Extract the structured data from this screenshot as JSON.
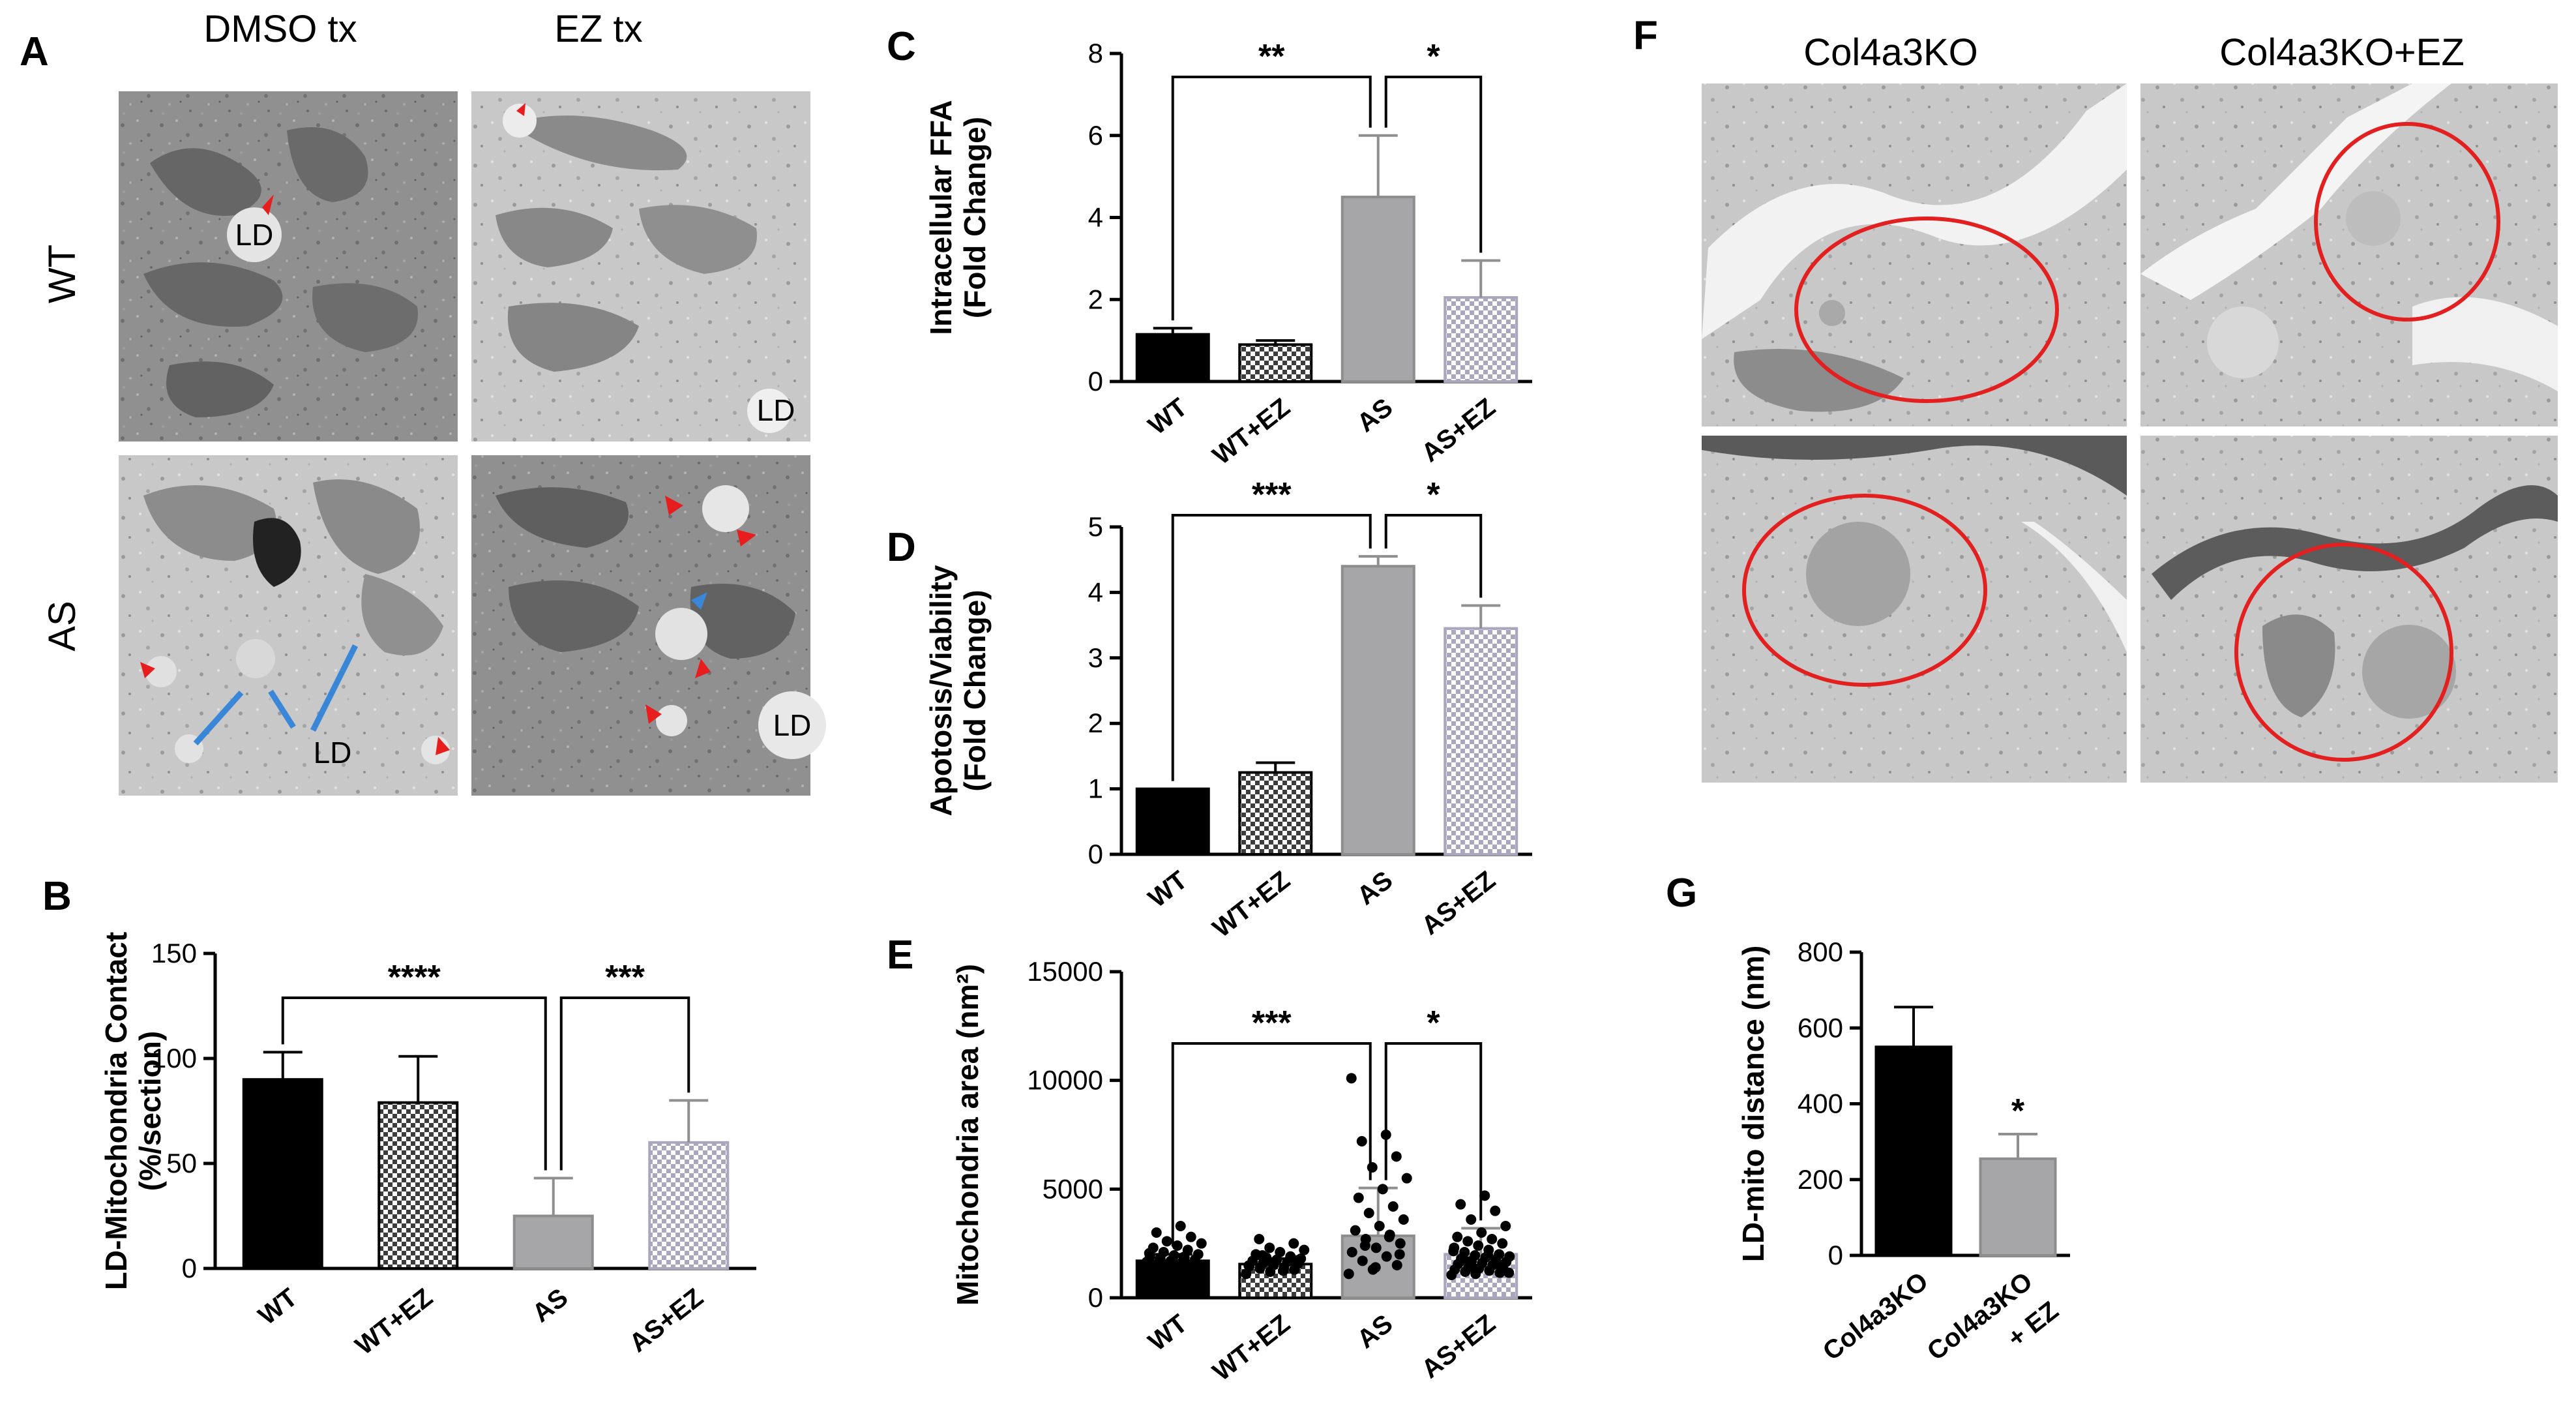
{
  "panels": {
    "A": {
      "label": "A",
      "col_headers": [
        "DMSO tx",
        "EZ tx"
      ],
      "row_headers": [
        "WT",
        "AS"
      ],
      "ld_label": "LD"
    },
    "F": {
      "label": "F",
      "col_headers": [
        "Col4a3KO",
        "Col4a3KO+EZ"
      ]
    }
  },
  "colors": {
    "bar_black": "#000000",
    "bar_gray": "#a6a6a8",
    "em_background": "#8d8d8d",
    "arrow_red": "#e81e1e",
    "arrow_blue": "#3a86d8",
    "circle_red": "#e32020"
  },
  "chart_data": [
    {
      "panel": "B",
      "type": "bar",
      "ylabel": "LD-Mitochondria Contact (%/section)",
      "ylabel_lines": [
        "LD-Mitochondria Contact",
        "(%/section)"
      ],
      "categories": [
        "WT",
        "WT+EZ",
        "AS",
        "AS+EZ"
      ],
      "values": [
        90,
        79,
        25,
        60
      ],
      "errors": [
        13,
        22,
        18,
        20
      ],
      "ylim": [
        0,
        150
      ],
      "yticks": [
        0,
        50,
        100,
        150
      ],
      "fills": [
        "black",
        "check",
        "gray",
        "light-check"
      ],
      "significance": [
        {
          "from": 0,
          "to": 2,
          "label": "****"
        },
        {
          "from": 2,
          "to": 3,
          "label": "***"
        }
      ]
    },
    {
      "panel": "C",
      "type": "bar",
      "ylabel": "Intracellular FFA (Fold Change)",
      "ylabel_lines": [
        "Intracellular FFA",
        "(Fold Change)"
      ],
      "categories": [
        "WT",
        "WT+EZ",
        "AS",
        "AS+EZ"
      ],
      "values": [
        1.15,
        0.9,
        4.5,
        2.05
      ],
      "errors": [
        0.15,
        0.1,
        1.5,
        0.9
      ],
      "ylim": [
        0,
        8
      ],
      "yticks": [
        0,
        2,
        4,
        6,
        8
      ],
      "fills": [
        "black",
        "check",
        "gray",
        "light-check"
      ],
      "significance": [
        {
          "from": 0,
          "to": 2,
          "label": "**"
        },
        {
          "from": 2,
          "to": 3,
          "label": "*"
        }
      ]
    },
    {
      "panel": "D",
      "type": "bar",
      "ylabel": "Apotosis/Viability (Fold Change)",
      "ylabel_lines": [
        "Apotosis/Viability",
        "(Fold Change)"
      ],
      "categories": [
        "WT",
        "WT+EZ",
        "AS",
        "AS+EZ"
      ],
      "values": [
        1.0,
        1.25,
        4.4,
        3.45
      ],
      "errors": [
        0.0,
        0.15,
        0.15,
        0.35
      ],
      "ylim": [
        0,
        5
      ],
      "yticks": [
        0,
        1,
        2,
        3,
        4,
        5
      ],
      "fills": [
        "black",
        "check",
        "gray",
        "light-check"
      ],
      "significance": [
        {
          "from": 0,
          "to": 2,
          "label": "***"
        },
        {
          "from": 2,
          "to": 3,
          "label": "*"
        }
      ]
    },
    {
      "panel": "E",
      "type": "bar",
      "ylabel": "Mitochondria area (nm²)",
      "ylabel_lines": [
        "Mitochondria area (nm²)"
      ],
      "categories": [
        "WT",
        "WT+EZ",
        "AS",
        "AS+EZ"
      ],
      "values": [
        1700,
        1550,
        2850,
        2000
      ],
      "errors": [
        300,
        250,
        2200,
        1200
      ],
      "ylim": [
        0,
        15000
      ],
      "yticks": [
        0,
        5000,
        10000,
        15000
      ],
      "fills": [
        "black",
        "check",
        "gray",
        "light-check"
      ],
      "points": [
        [
          1200,
          1350,
          1450,
          1550,
          1600,
          1650,
          1700,
          1750,
          1800,
          1850,
          1900,
          1950,
          2000,
          2100,
          2200,
          2300,
          2400,
          2500,
          2600,
          2800,
          3000,
          3300,
          1400,
          1500,
          1620,
          1780,
          1880,
          2050
        ],
        [
          1100,
          1200,
          1300,
          1350,
          1400,
          1450,
          1500,
          1550,
          1600,
          1650,
          1700,
          1750,
          1800,
          1850,
          1900,
          2000,
          2100,
          2200,
          2300,
          2500,
          2700,
          1250,
          1480,
          1580,
          1720,
          1950
        ],
        [
          1100,
          1300,
          1500,
          1700,
          1900,
          2100,
          2300,
          2500,
          2700,
          2900,
          3100,
          3300,
          3600,
          3900,
          4200,
          4600,
          5000,
          5500,
          6000,
          6500,
          7200,
          7500,
          10100,
          1400,
          2000,
          2400,
          2800
        ],
        [
          1050,
          1100,
          1150,
          1200,
          1250,
          1300,
          1350,
          1400,
          1450,
          1500,
          1550,
          1600,
          1650,
          1700,
          1750,
          1800,
          1850,
          1900,
          1950,
          2000,
          2100,
          2200,
          2300,
          2400,
          2500,
          2600,
          2700,
          2800,
          3000,
          3300,
          3600,
          4000,
          4300,
          4700,
          1150,
          1350,
          1550,
          1750,
          1950,
          2150
        ]
      ],
      "significance": [
        {
          "from": 0,
          "to": 2,
          "label": "***"
        },
        {
          "from": 2,
          "to": 3,
          "label": "*"
        }
      ]
    },
    {
      "panel": "G",
      "type": "bar",
      "ylabel": "LD-mito distance (nm)",
      "ylabel_lines": [
        "LD-mito distance (nm)"
      ],
      "categories": [
        "Col4a3KO",
        "Col4a3KO + EZ"
      ],
      "category_lines": [
        [
          "Col4a3KO"
        ],
        [
          "Col4a3KO",
          "+ EZ"
        ]
      ],
      "values": [
        550,
        255
      ],
      "errors": [
        105,
        65
      ],
      "ylim": [
        0,
        800
      ],
      "yticks": [
        0,
        200,
        400,
        600,
        800
      ],
      "fills": [
        "black",
        "gray"
      ],
      "significance": [
        {
          "over": 1,
          "label": "*"
        }
      ]
    }
  ]
}
